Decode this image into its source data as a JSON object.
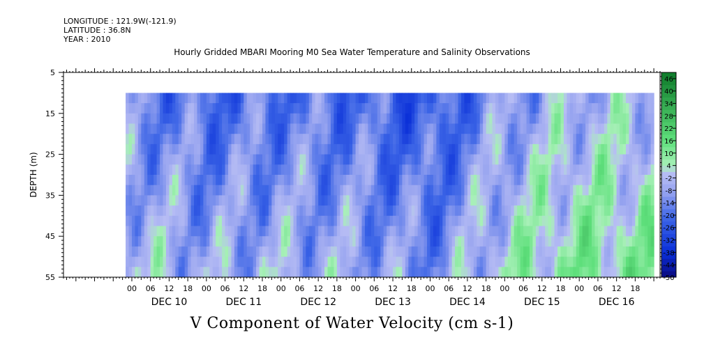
{
  "header": {
    "longitude": "LONGITUDE : 121.9W(-121.9)",
    "latitude": "LATITUDE : 36.8N",
    "year": "YEAR : 2010"
  },
  "title": "Hourly Gridded MBARI Mooring M0 Sea Water Temperature and Salinity Observations",
  "footer": "V Component of Water Velocity (cm s-1)",
  "chart_data": {
    "type": "heatmap",
    "title": "Hourly Gridded MBARI Mooring M0 Sea Water Temperature and Salinity Observations",
    "xlabel": "",
    "ylabel": "DEPTH (m)",
    "variable": "V Component of Water Velocity (cm s-1)",
    "x_hour_ticks": [
      "00",
      "06",
      "12",
      "18",
      "00",
      "06",
      "12",
      "18",
      "00",
      "06",
      "12",
      "18",
      "00",
      "06",
      "12",
      "18",
      "00",
      "06",
      "12",
      "18",
      "00",
      "06",
      "12",
      "18",
      "00",
      "06",
      "12",
      "18"
    ],
    "x_day_labels": [
      "DEC 10",
      "DEC 11",
      "DEC 12",
      "DEC 13",
      "DEC 14",
      "DEC 15",
      "DEC 16"
    ],
    "x_range_hours": [
      -22,
      170
    ],
    "data_range_hours": [
      -2,
      168
    ],
    "y_ticks": [
      5,
      15,
      25,
      35,
      45,
      55
    ],
    "ylim": [
      5,
      55
    ],
    "y_inverted": true,
    "data_depth_range": [
      10,
      55
    ],
    "colorbar_ticks": [
      "46",
      "40",
      "34",
      "28",
      "22",
      "16",
      "10",
      "4",
      "-2",
      "-8",
      "-14",
      "-20",
      "-26",
      "-32",
      "-38",
      "-44",
      "-50"
    ],
    "colorbar_range": [
      -50,
      49
    ],
    "colorbar_step": 3,
    "colors": {
      "negative_strong": "#0a2fd8",
      "negative_mid": "#3a63e6",
      "negative_light": "#9aa6f0",
      "near_zero": "#b7bdf4",
      "positive_light": "#a8f0b8",
      "positive_mid": "#5fe07c",
      "positive_strong": "#0e7a2a",
      "most_negative": "#0a0a80"
    },
    "v_mean_by_day": [
      {
        "day": "DEC 10",
        "value": -6
      },
      {
        "day": "DEC 11",
        "value": -12
      },
      {
        "day": "DEC 12",
        "value": -10
      },
      {
        "day": "DEC 13",
        "value": -12
      },
      {
        "day": "DEC 14",
        "value": -18
      },
      {
        "day": "DEC 15",
        "value": -2
      },
      {
        "day": "DEC 16",
        "value": 4
      }
    ]
  }
}
